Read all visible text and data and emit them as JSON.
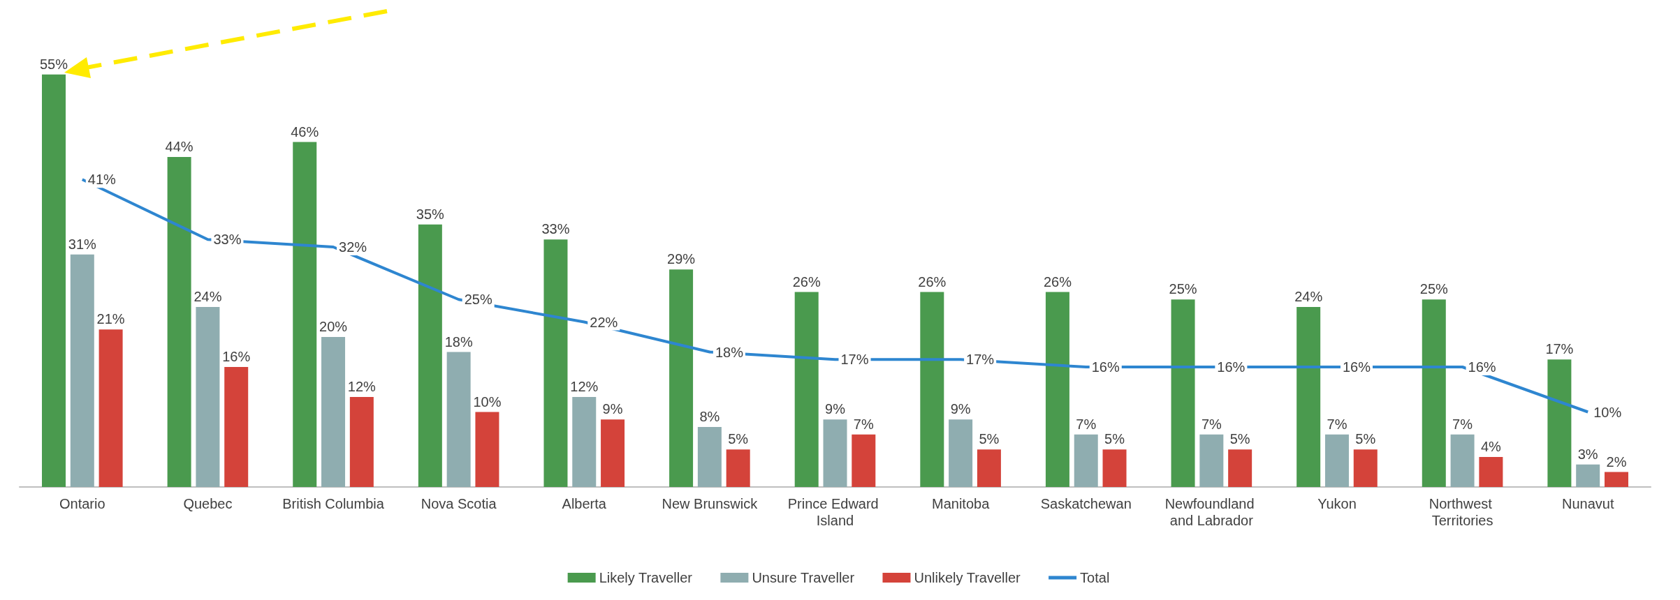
{
  "chart_data": {
    "type": "bar",
    "categories": [
      "Ontario",
      "Quebec",
      "British Columbia",
      "Nova Scotia",
      "Alberta",
      "New Brunswick",
      "Prince Edward Island",
      "Manitoba",
      "Saskatchewan",
      "Newfoundland and Labrador",
      "Yukon",
      "Northwest Territories",
      "Nunavut"
    ],
    "series": [
      {
        "name": "Likely Traveller",
        "color": "#4a9a4e",
        "values": [
          55,
          44,
          46,
          35,
          33,
          29,
          26,
          26,
          26,
          25,
          24,
          25,
          17
        ],
        "value_labels": [
          "55%",
          "44%",
          "46%",
          "35%",
          "33%",
          "29%",
          "26%",
          "26%",
          "26%",
          "25%",
          "24%",
          "25%",
          "17%"
        ]
      },
      {
        "name": "Unsure Traveller",
        "color": "#8fadb0",
        "values": [
          31,
          24,
          20,
          18,
          12,
          8,
          9,
          9,
          7,
          7,
          7,
          7,
          3
        ],
        "value_labels": [
          "31%",
          "24%",
          "20%",
          "18%",
          "12%",
          "8%",
          "9%",
          "9%",
          "7%",
          "7%",
          "7%",
          "7%",
          "3%"
        ]
      },
      {
        "name": "Unlikely Traveller",
        "color": "#d4433a",
        "values": [
          21,
          16,
          12,
          10,
          9,
          5,
          7,
          5,
          5,
          5,
          5,
          4,
          2
        ],
        "value_labels": [
          "21%",
          "16%",
          "12%",
          "10%",
          "9%",
          "5%",
          "7%",
          "5%",
          "5%",
          "5%",
          "5%",
          "4%",
          "2%"
        ]
      },
      {
        "name": "Total",
        "type": "line",
        "color": "#2e86d0",
        "values": [
          41,
          33,
          32,
          25,
          22,
          18,
          17,
          17,
          16,
          16,
          16,
          16,
          10
        ],
        "value_labels": [
          "41%",
          "33%",
          "32%",
          "25%",
          "22%",
          "18%",
          "17%",
          "17%",
          "16%",
          "16%",
          "16%",
          "16%",
          "10%"
        ]
      }
    ],
    "legend": "bottom",
    "marker": "none"
  }
}
